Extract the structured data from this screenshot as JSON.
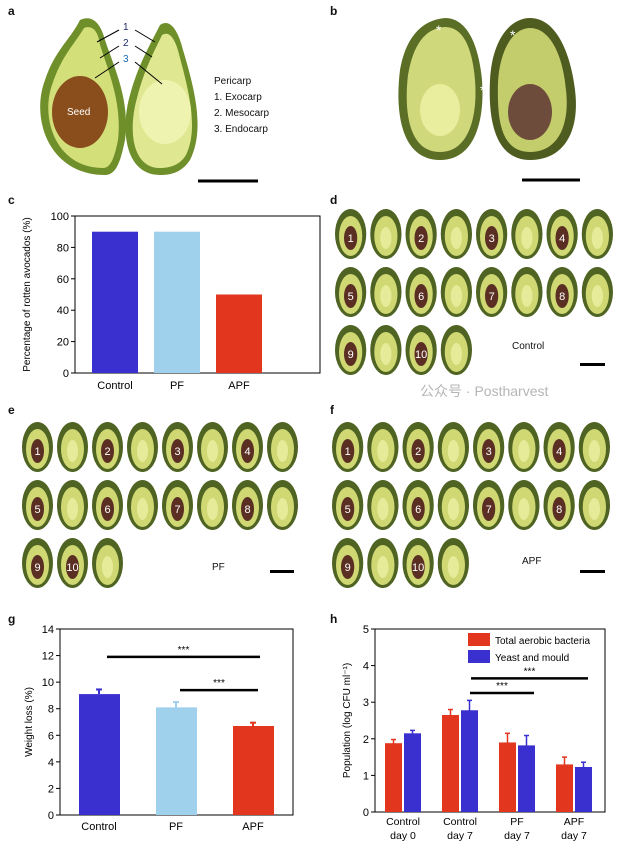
{
  "panels": {
    "a": "a",
    "b": "b",
    "c": "c",
    "d": "d",
    "e": "e",
    "f": "f",
    "g": "g",
    "h": "h"
  },
  "panel_a": {
    "arrow_numbers": [
      "1",
      "2",
      "3"
    ],
    "seed_label": "Seed",
    "legend_title": "Pericarp",
    "legend_items": [
      "1. Exocarp",
      "2. Mesocarp",
      "3. Endocarp"
    ]
  },
  "panel_d": {
    "label": "Control",
    "rows": [
      [
        "1",
        "",
        "2",
        "",
        "3",
        "",
        "4",
        ""
      ],
      [
        "5",
        "",
        "6",
        "",
        "7",
        "",
        "8",
        ""
      ],
      [
        "9",
        "",
        "10",
        ""
      ]
    ]
  },
  "panel_e": {
    "label": "PF",
    "rows": [
      [
        "1",
        "",
        "2",
        "",
        "3",
        "",
        "4",
        ""
      ],
      [
        "5",
        "",
        "6",
        "",
        "7",
        "",
        "8",
        ""
      ],
      [
        "9",
        "10",
        ""
      ]
    ]
  },
  "panel_f": {
    "label": "APF",
    "rows": [
      [
        "1",
        "",
        "2",
        "",
        "3",
        "",
        "4",
        ""
      ],
      [
        "5",
        "",
        "6",
        "",
        "7",
        "",
        "8",
        ""
      ],
      [
        "9",
        "",
        "10",
        ""
      ]
    ]
  },
  "colors": {
    "control": "#3a2fcf",
    "pf": "#9fd0ec",
    "apf": "#e2361e",
    "bacteria": "#e2361e",
    "yeast": "#3a2fcf"
  },
  "chart_data": [
    {
      "panel": "c",
      "type": "bar",
      "categories": [
        "Control",
        "PF",
        "APF"
      ],
      "values": [
        90,
        90,
        50
      ],
      "ylabel": "Percentage of rotten avocados (%)",
      "ylim": [
        0,
        100
      ],
      "yticks": [
        "0",
        "20",
        "40",
        "60",
        "80",
        "100"
      ]
    },
    {
      "panel": "g",
      "type": "bar",
      "categories": [
        "Control",
        "PF",
        "APF"
      ],
      "values": [
        9.1,
        8.1,
        6.7
      ],
      "errors": [
        0.35,
        0.4,
        0.25
      ],
      "ylabel": "Weight loss (%)",
      "ylim": [
        0,
        14
      ],
      "yticks": [
        "0",
        "2",
        "4",
        "6",
        "8",
        "10",
        "12",
        "14"
      ],
      "significance": [
        {
          "from": "Control",
          "to": "APF",
          "label": "***"
        },
        {
          "from": "PF",
          "to": "APF",
          "label": "***"
        }
      ]
    },
    {
      "panel": "h",
      "type": "bar",
      "categories": [
        "Control day 0",
        "Control day 7",
        "PF day 7",
        "APF day 7"
      ],
      "category_lines": [
        [
          "Control",
          "day 0"
        ],
        [
          "Control",
          "day 7"
        ],
        [
          "PF",
          "day 7"
        ],
        [
          "APF",
          "day 7"
        ]
      ],
      "series": [
        {
          "name": "Total aerobic bacteria",
          "values": [
            1.88,
            2.65,
            1.9,
            1.3
          ],
          "errors": [
            0.1,
            0.15,
            0.25,
            0.2
          ]
        },
        {
          "name": "Yeast and mould",
          "values": [
            2.15,
            2.78,
            1.82,
            1.23
          ],
          "errors": [
            0.08,
            0.27,
            0.27,
            0.13
          ]
        }
      ],
      "ylabel": "Population (log CFU ml⁻¹)",
      "ylim": [
        0,
        5
      ],
      "yticks": [
        "0",
        "1",
        "2",
        "3",
        "4",
        "5"
      ],
      "significance": [
        {
          "from": "Control day 7",
          "to": "PF day 7",
          "label": "***"
        },
        {
          "from": "Control day 7",
          "to": "APF day 7",
          "label": "***"
        }
      ]
    }
  ],
  "watermark": "公众号 · Postharvest"
}
